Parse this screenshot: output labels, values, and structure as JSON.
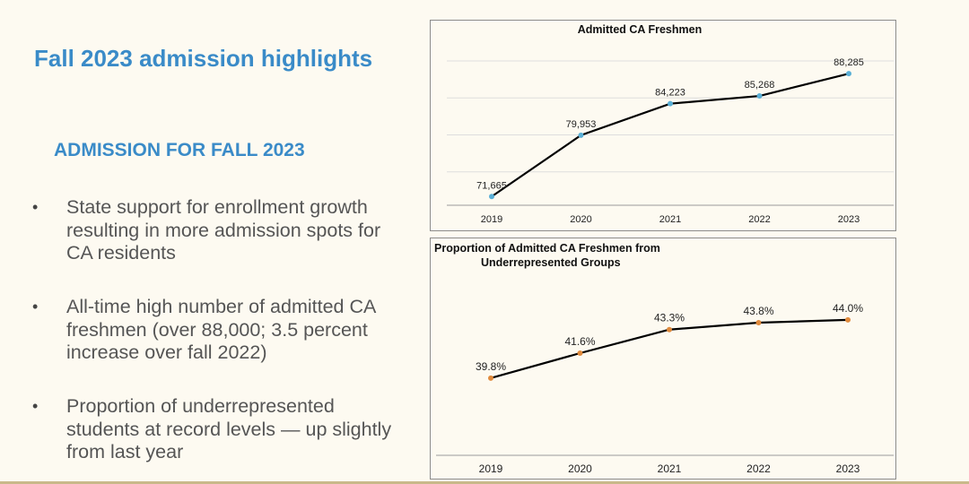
{
  "slide": {
    "title": "Fall 2023 admission highlights",
    "section_heading": "ADMISSION FOR FALL 2023",
    "bullets": [
      "State support for enrollment growth resulting in more admission spots for CA residents",
      "All-time high number of admitted CA freshmen (over 88,000; 3.5 percent increase over fall 2022)",
      "Proportion of underrepresented students at record levels — up slightly from last year"
    ],
    "colors": {
      "accent": "#3a8bc8",
      "series1_marker": "#5aafd6",
      "series2_marker": "#e08a3c"
    }
  },
  "chart_data": [
    {
      "type": "line",
      "title": "Admitted CA Freshmen",
      "x": [
        "2019",
        "2020",
        "2021",
        "2022",
        "2023"
      ],
      "values": [
        71665,
        79953,
        84223,
        85268,
        88285
      ],
      "labels": [
        "71,665",
        "79,953",
        "84,223",
        "85,268",
        "88,285"
      ],
      "ylim": [
        70000,
        90000
      ],
      "grid": true,
      "marker_color": "#5aafd6"
    },
    {
      "type": "line",
      "title": "Proportion of Admitted CA Freshmen from Underrepresented Groups",
      "title_lines": [
        "Proportion of Admitted CA Freshmen from",
        "Underrepresented Groups"
      ],
      "x": [
        "2019",
        "2020",
        "2021",
        "2022",
        "2023"
      ],
      "values": [
        39.8,
        41.6,
        43.3,
        43.8,
        44.0
      ],
      "labels": [
        "39.8%",
        "41.6%",
        "43.3%",
        "43.8%",
        "44.0%"
      ],
      "ylim": [
        35,
        46
      ],
      "grid": false,
      "marker_color": "#e08a3c"
    }
  ]
}
